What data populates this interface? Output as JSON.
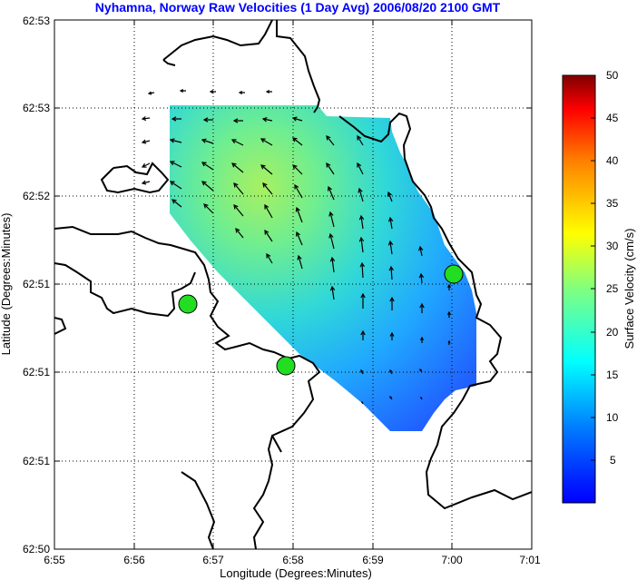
{
  "title": "Nyhamna, Norway Raw Velocities (1 Day Avg) 2006/08/20 2100 GMT",
  "xlabel": "Longitude (Degrees:Minutes)",
  "ylabel": "Latitude (Degrees:Minutes)",
  "x_ticks": [
    "6:55",
    "6:56",
    "6:57",
    "6:58",
    "6:59",
    "7:00",
    "7:01"
  ],
  "y_ticks": [
    "62:53",
    "62:53",
    "62:52",
    "62:51",
    "62:51",
    "62:51",
    "62:50"
  ],
  "colorbar": {
    "label": "Surface Velocity (cm/s)",
    "ticks": [
      "50",
      "45",
      "40",
      "35",
      "30",
      "25",
      "20",
      "15",
      "10",
      "5"
    ],
    "min": 0,
    "max": 50,
    "colormap": "jet"
  },
  "colors": {
    "title": "#0000ff",
    "coastline": "#000000",
    "grid": "#000000",
    "station_fill": "#22dd22",
    "station_stroke": "#000000"
  },
  "grid": "dotted",
  "stations_count": 3
}
